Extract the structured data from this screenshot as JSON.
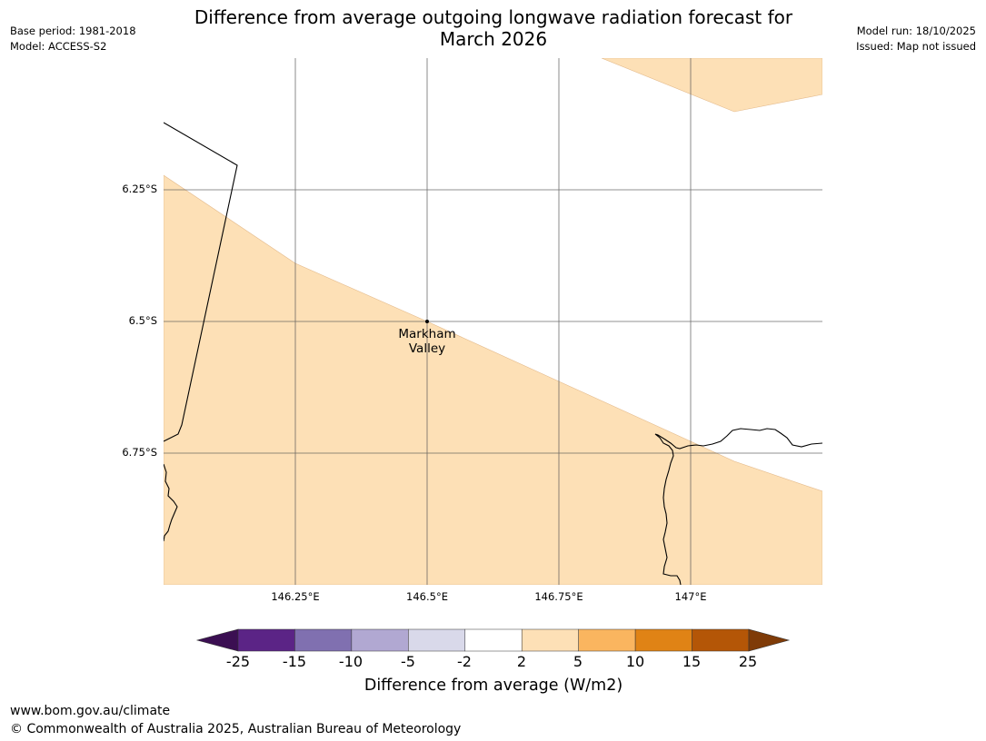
{
  "title_line1": "Difference from average outgoing longwave radiation forecast for",
  "title_line2": "March 2026",
  "meta_left": {
    "base_period": "Base period: 1981-2018",
    "model": "Model: ACCESS-S2"
  },
  "meta_right": {
    "model_run": "Model run: 18/10/2025",
    "issued": "Issued: Map not issued"
  },
  "map": {
    "lat_labels": [
      "6.25°S",
      "6.5°S",
      "6.75°S"
    ],
    "lon_labels": [
      "146.25°E",
      "146.5°E",
      "146.75°E",
      "147°E"
    ],
    "place": {
      "line1": "Markham",
      "line2": "Valley"
    }
  },
  "colorbar": {
    "ticks": [
      "-25",
      "-15",
      "-10",
      "-5",
      "-2",
      "2",
      "5",
      "10",
      "15",
      "25"
    ],
    "colors": [
      "#3b0f52",
      "#5b2486",
      "#8070b0",
      "#b1a8d2",
      "#d9d9ea",
      "#ffffff",
      "#fde0b6",
      "#fab55f",
      "#e08315",
      "#b45607",
      "#7f3b08"
    ],
    "label": "Difference from average (W/m2)"
  },
  "footer": {
    "url": "www.bom.gov.au/climate",
    "copyright": "© Commonwealth of Australia 2025, Australian Bureau of Meteorology"
  }
}
